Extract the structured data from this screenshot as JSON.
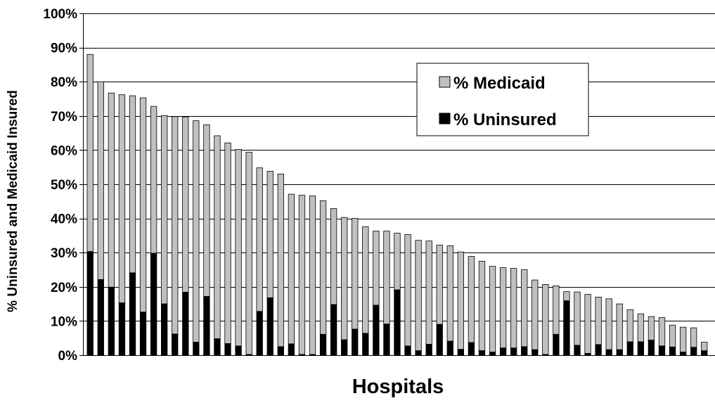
{
  "chart_data": {
    "type": "bar",
    "stacked": true,
    "xlabel": "Hospitals",
    "ylabel": "% Uninsured and Medicaid Insured",
    "ylim": [
      0,
      100
    ],
    "y_ticks": [
      "0%",
      "10%",
      "20%",
      "30%",
      "40%",
      "50%",
      "60%",
      "70%",
      "80%",
      "90%",
      "100%"
    ],
    "y_tick_values": [
      0,
      10,
      20,
      30,
      40,
      50,
      60,
      70,
      80,
      90,
      100
    ],
    "grid": true,
    "legend_position": "top-right",
    "legend": [
      {
        "label": "% Medicaid",
        "color": "#c0c0c0"
      },
      {
        "label": "% Uninsured",
        "color": "#000000"
      }
    ],
    "totals": [
      88.0,
      80.0,
      76.7,
      76.2,
      75.9,
      75.3,
      72.8,
      70.1,
      69.8,
      69.7,
      68.6,
      67.4,
      64.2,
      62.1,
      60.2,
      59.4,
      54.8,
      53.8,
      53.0,
      47.1,
      46.8,
      46.6,
      45.2,
      42.9,
      40.3,
      40.0,
      37.6,
      36.3,
      36.3,
      35.7,
      35.3,
      33.6,
      33.4,
      32.2,
      32.0,
      30.2,
      28.9,
      27.5,
      26.0,
      25.6,
      25.4,
      25.0,
      22.0,
      20.7,
      20.3,
      18.6,
      18.5,
      17.8,
      17.0,
      16.5,
      15.0,
      13.3,
      12.1,
      11.3,
      11.0,
      8.8,
      8.2,
      8.0,
      3.8
    ],
    "series": [
      {
        "name": "% Uninsured",
        "values": [
          30.3,
          22.1,
          19.9,
          15.3,
          24.1,
          12.6,
          29.8,
          15.0,
          6.2,
          18.4,
          3.8,
          17.2,
          4.8,
          3.4,
          2.7,
          0.2,
          12.8,
          16.8,
          2.5,
          3.3,
          0.2,
          0.2,
          6.1,
          14.8,
          4.5,
          7.6,
          6.4,
          14.6,
          9.1,
          19.1,
          2.7,
          1.3,
          3.2,
          9.0,
          4.1,
          1.7,
          3.7,
          1.3,
          0.9,
          2.1,
          2.1,
          2.5,
          1.6,
          0.2,
          6.1,
          15.9,
          2.9,
          0.5,
          3.1,
          1.6,
          1.6,
          3.9,
          3.9,
          4.4,
          2.7,
          2.4,
          0.9,
          2.3,
          1.3
        ]
      },
      {
        "name": "% Medicaid",
        "values": [
          57.7,
          57.9,
          56.8,
          60.9,
          51.8,
          62.7,
          43.0,
          55.1,
          63.6,
          51.3,
          64.8,
          50.2,
          59.4,
          58.7,
          57.5,
          59.2,
          42.0,
          37.0,
          50.5,
          43.8,
          46.6,
          46.4,
          39.1,
          28.1,
          35.8,
          32.4,
          31.2,
          21.7,
          27.2,
          16.6,
          32.6,
          32.3,
          30.2,
          23.2,
          27.9,
          28.5,
          25.2,
          26.2,
          25.1,
          23.5,
          23.3,
          22.5,
          20.4,
          20.5,
          14.2,
          2.7,
          15.6,
          17.3,
          13.9,
          14.9,
          13.4,
          9.4,
          8.2,
          6.9,
          8.3,
          6.4,
          7.3,
          5.7,
          2.5
        ]
      }
    ]
  }
}
